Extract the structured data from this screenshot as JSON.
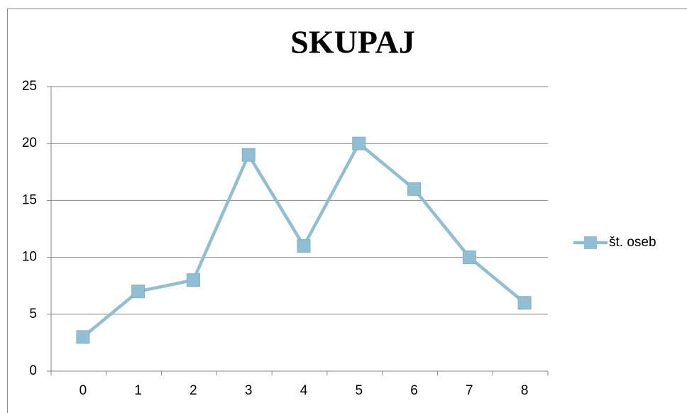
{
  "chart_data": {
    "type": "line",
    "title": "SKUPAJ",
    "categories": [
      "0",
      "1",
      "2",
      "3",
      "4",
      "5",
      "6",
      "7",
      "8"
    ],
    "series": [
      {
        "name": "št. oseb",
        "color": "#8ebfd4",
        "values": [
          3,
          7,
          8,
          19,
          11,
          20,
          16,
          10,
          6
        ]
      }
    ],
    "ylim": [
      0,
      25
    ],
    "yticks": [
      0,
      5,
      10,
      15,
      20,
      25
    ],
    "grid": true,
    "legend": "right"
  }
}
